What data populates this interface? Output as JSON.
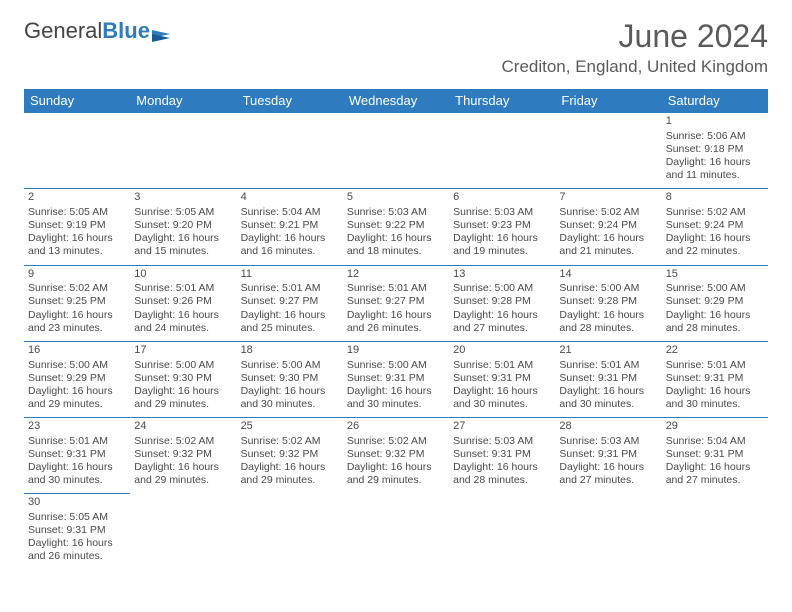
{
  "logo": {
    "part1": "General",
    "part2": "Blue"
  },
  "title": "June 2024",
  "location": "Crediton, England, United Kingdom",
  "headers": [
    "Sunday",
    "Monday",
    "Tuesday",
    "Wednesday",
    "Thursday",
    "Friday",
    "Saturday"
  ],
  "colors": {
    "header_bg": "#2e7bc0",
    "header_text": "#ffffff",
    "border": "#2e7bc0",
    "text": "#4a4a4a",
    "title_text": "#5a5a5a"
  },
  "weeks": [
    [
      null,
      null,
      null,
      null,
      null,
      null,
      {
        "n": "1",
        "sr": "Sunrise: 5:06 AM",
        "ss": "Sunset: 9:18 PM",
        "d1": "Daylight: 16 hours",
        "d2": "and 11 minutes."
      }
    ],
    [
      {
        "n": "2",
        "sr": "Sunrise: 5:05 AM",
        "ss": "Sunset: 9:19 PM",
        "d1": "Daylight: 16 hours",
        "d2": "and 13 minutes."
      },
      {
        "n": "3",
        "sr": "Sunrise: 5:05 AM",
        "ss": "Sunset: 9:20 PM",
        "d1": "Daylight: 16 hours",
        "d2": "and 15 minutes."
      },
      {
        "n": "4",
        "sr": "Sunrise: 5:04 AM",
        "ss": "Sunset: 9:21 PM",
        "d1": "Daylight: 16 hours",
        "d2": "and 16 minutes."
      },
      {
        "n": "5",
        "sr": "Sunrise: 5:03 AM",
        "ss": "Sunset: 9:22 PM",
        "d1": "Daylight: 16 hours",
        "d2": "and 18 minutes."
      },
      {
        "n": "6",
        "sr": "Sunrise: 5:03 AM",
        "ss": "Sunset: 9:23 PM",
        "d1": "Daylight: 16 hours",
        "d2": "and 19 minutes."
      },
      {
        "n": "7",
        "sr": "Sunrise: 5:02 AM",
        "ss": "Sunset: 9:24 PM",
        "d1": "Daylight: 16 hours",
        "d2": "and 21 minutes."
      },
      {
        "n": "8",
        "sr": "Sunrise: 5:02 AM",
        "ss": "Sunset: 9:24 PM",
        "d1": "Daylight: 16 hours",
        "d2": "and 22 minutes."
      }
    ],
    [
      {
        "n": "9",
        "sr": "Sunrise: 5:02 AM",
        "ss": "Sunset: 9:25 PM",
        "d1": "Daylight: 16 hours",
        "d2": "and 23 minutes."
      },
      {
        "n": "10",
        "sr": "Sunrise: 5:01 AM",
        "ss": "Sunset: 9:26 PM",
        "d1": "Daylight: 16 hours",
        "d2": "and 24 minutes."
      },
      {
        "n": "11",
        "sr": "Sunrise: 5:01 AM",
        "ss": "Sunset: 9:27 PM",
        "d1": "Daylight: 16 hours",
        "d2": "and 25 minutes."
      },
      {
        "n": "12",
        "sr": "Sunrise: 5:01 AM",
        "ss": "Sunset: 9:27 PM",
        "d1": "Daylight: 16 hours",
        "d2": "and 26 minutes."
      },
      {
        "n": "13",
        "sr": "Sunrise: 5:00 AM",
        "ss": "Sunset: 9:28 PM",
        "d1": "Daylight: 16 hours",
        "d2": "and 27 minutes."
      },
      {
        "n": "14",
        "sr": "Sunrise: 5:00 AM",
        "ss": "Sunset: 9:28 PM",
        "d1": "Daylight: 16 hours",
        "d2": "and 28 minutes."
      },
      {
        "n": "15",
        "sr": "Sunrise: 5:00 AM",
        "ss": "Sunset: 9:29 PM",
        "d1": "Daylight: 16 hours",
        "d2": "and 28 minutes."
      }
    ],
    [
      {
        "n": "16",
        "sr": "Sunrise: 5:00 AM",
        "ss": "Sunset: 9:29 PM",
        "d1": "Daylight: 16 hours",
        "d2": "and 29 minutes."
      },
      {
        "n": "17",
        "sr": "Sunrise: 5:00 AM",
        "ss": "Sunset: 9:30 PM",
        "d1": "Daylight: 16 hours",
        "d2": "and 29 minutes."
      },
      {
        "n": "18",
        "sr": "Sunrise: 5:00 AM",
        "ss": "Sunset: 9:30 PM",
        "d1": "Daylight: 16 hours",
        "d2": "and 30 minutes."
      },
      {
        "n": "19",
        "sr": "Sunrise: 5:00 AM",
        "ss": "Sunset: 9:31 PM",
        "d1": "Daylight: 16 hours",
        "d2": "and 30 minutes."
      },
      {
        "n": "20",
        "sr": "Sunrise: 5:01 AM",
        "ss": "Sunset: 9:31 PM",
        "d1": "Daylight: 16 hours",
        "d2": "and 30 minutes."
      },
      {
        "n": "21",
        "sr": "Sunrise: 5:01 AM",
        "ss": "Sunset: 9:31 PM",
        "d1": "Daylight: 16 hours",
        "d2": "and 30 minutes."
      },
      {
        "n": "22",
        "sr": "Sunrise: 5:01 AM",
        "ss": "Sunset: 9:31 PM",
        "d1": "Daylight: 16 hours",
        "d2": "and 30 minutes."
      }
    ],
    [
      {
        "n": "23",
        "sr": "Sunrise: 5:01 AM",
        "ss": "Sunset: 9:31 PM",
        "d1": "Daylight: 16 hours",
        "d2": "and 30 minutes."
      },
      {
        "n": "24",
        "sr": "Sunrise: 5:02 AM",
        "ss": "Sunset: 9:32 PM",
        "d1": "Daylight: 16 hours",
        "d2": "and 29 minutes."
      },
      {
        "n": "25",
        "sr": "Sunrise: 5:02 AM",
        "ss": "Sunset: 9:32 PM",
        "d1": "Daylight: 16 hours",
        "d2": "and 29 minutes."
      },
      {
        "n": "26",
        "sr": "Sunrise: 5:02 AM",
        "ss": "Sunset: 9:32 PM",
        "d1": "Daylight: 16 hours",
        "d2": "and 29 minutes."
      },
      {
        "n": "27",
        "sr": "Sunrise: 5:03 AM",
        "ss": "Sunset: 9:31 PM",
        "d1": "Daylight: 16 hours",
        "d2": "and 28 minutes."
      },
      {
        "n": "28",
        "sr": "Sunrise: 5:03 AM",
        "ss": "Sunset: 9:31 PM",
        "d1": "Daylight: 16 hours",
        "d2": "and 27 minutes."
      },
      {
        "n": "29",
        "sr": "Sunrise: 5:04 AM",
        "ss": "Sunset: 9:31 PM",
        "d1": "Daylight: 16 hours",
        "d2": "and 27 minutes."
      }
    ],
    [
      {
        "n": "30",
        "sr": "Sunrise: 5:05 AM",
        "ss": "Sunset: 9:31 PM",
        "d1": "Daylight: 16 hours",
        "d2": "and 26 minutes."
      },
      null,
      null,
      null,
      null,
      null,
      null
    ]
  ]
}
